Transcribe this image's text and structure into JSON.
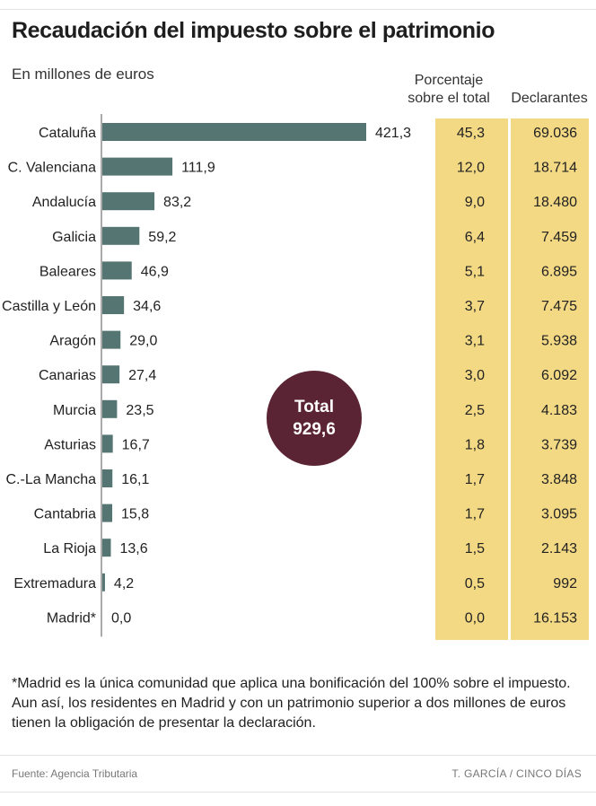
{
  "header": {
    "title": "Recaudación del impuesto sobre el patrimonio",
    "subtitle": "En millones de euros"
  },
  "columns": {
    "percentage_line1": "Porcentaje",
    "percentage_line2": "sobre el total",
    "declarants": "Declarantes"
  },
  "total": {
    "label": "Total",
    "value": "929,6"
  },
  "footnote": "*Madrid es la única comunidad que aplica una bonificación del 100% sobre el impuesto. Aun así, los residentes en Madrid y con un patrimonio superior a dos millones de euros tienen la obligación de presentar la declaración.",
  "footer": {
    "source": "Fuente: Agencia Tributaria",
    "credit": "T. GARCÍA / CINCO DÍAS"
  },
  "colors": {
    "bar": "#557573",
    "panel": "#f3d984",
    "total_circle": "#5b2434"
  },
  "chart_data": {
    "type": "bar",
    "orientation": "horizontal",
    "categories": [
      "Cataluña",
      "C. Valenciana",
      "Andalucía",
      "Galicia",
      "Baleares",
      "Castilla y León",
      "Aragón",
      "Canarias",
      "Murcia",
      "Asturias",
      "C.-La Mancha",
      "Cantabria",
      "La Rioja",
      "Extremadura",
      "Madrid*"
    ],
    "values": [
      421.3,
      111.9,
      83.2,
      59.2,
      46.9,
      34.6,
      29.0,
      27.4,
      23.5,
      16.7,
      16.1,
      15.8,
      13.6,
      4.2,
      0.0
    ],
    "value_labels": [
      "421,3",
      "111,9",
      "83,2",
      "59,2",
      "46,9",
      "34,6",
      "29,0",
      "27,4",
      "23,5",
      "16,7",
      "16,1",
      "15,8",
      "13,6",
      "4,2",
      "0,0"
    ],
    "percentage": [
      "45,3",
      "12,0",
      "9,0",
      "6,4",
      "5,1",
      "3,7",
      "3,1",
      "3,0",
      "2,5",
      "1,8",
      "1,7",
      "1,7",
      "1,5",
      "0,5",
      "0,0"
    ],
    "declarants": [
      "69.036",
      "18.714",
      "18.480",
      "7.459",
      "6.895",
      "7.475",
      "5.938",
      "6.092",
      "4.183",
      "3.739",
      "3.848",
      "3.095",
      "2.143",
      "992",
      "16.153"
    ],
    "xlim": [
      0,
      421.3
    ],
    "grid": false
  }
}
